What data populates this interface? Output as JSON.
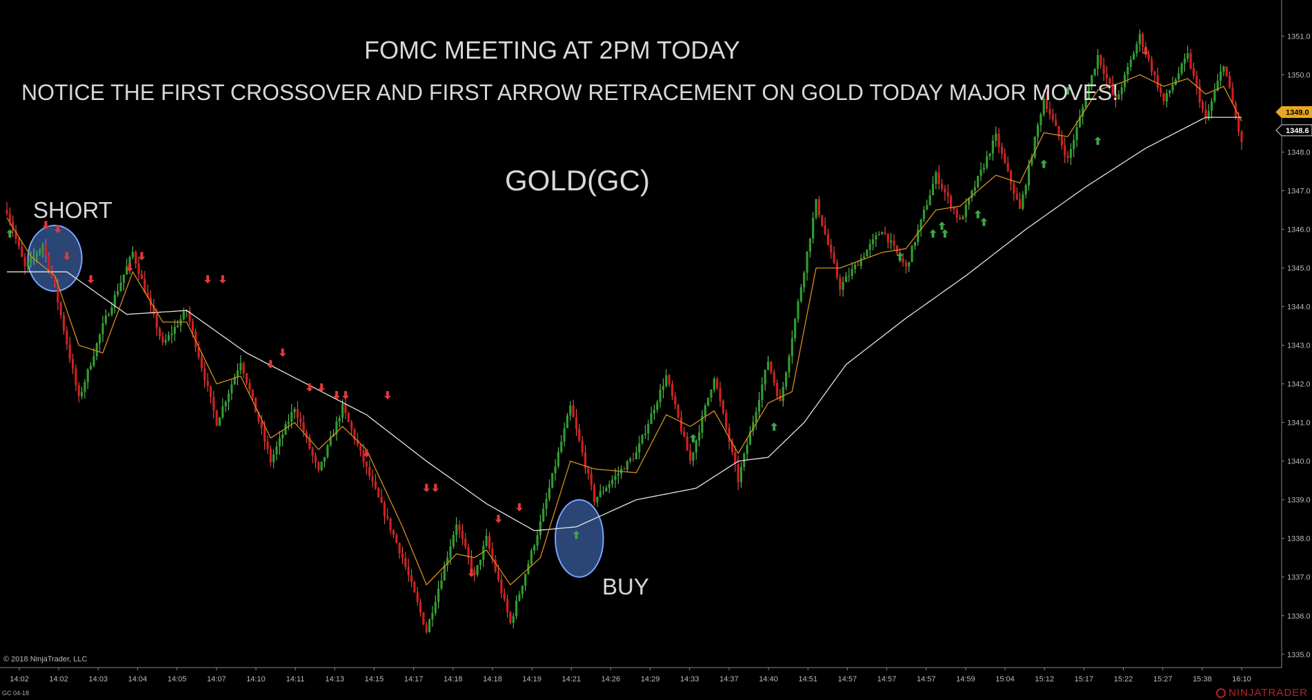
{
  "annotations": {
    "headline": "FOMC MEETING AT 2PM TODAY",
    "subline": "NOTICE THE FIRST CROSSOVER AND FIRST ARROW RETRACEMENT ON GOLD TODAY MAJOR MOVES!",
    "instrument": "GOLD(GC)",
    "short_label": "SHORT",
    "buy_label": "BUY"
  },
  "footer": {
    "copyright": "© 2018 NinjaTrader, LLC",
    "symbol": "GC 04-18",
    "brand": "NINJATRADER"
  },
  "colors": {
    "background": "#000000",
    "up_bar": "#2e9e2e",
    "down_bar": "#d41e1e",
    "fast_ma": "#d7901e",
    "slow_ma": "#e6e6e6",
    "up_arrow": "#3ea64a",
    "down_arrow": "#e0393e",
    "highlight": "#4f7fd6",
    "price_badge": "#e8a820"
  },
  "chart_data": {
    "type": "candlestick",
    "title": "GOLD(GC)",
    "xlabel": "",
    "ylabel": "",
    "ylim": [
      1334.8,
      1351.4
    ],
    "y_ticks": [
      1335.0,
      1336.0,
      1337.0,
      1338.0,
      1339.0,
      1340.0,
      1341.0,
      1342.0,
      1343.0,
      1344.0,
      1345.0,
      1346.0,
      1347.0,
      1348.0,
      1349.0,
      1350.0,
      1351.0
    ],
    "x_tick_labels": [
      "14:02",
      "14:02",
      "14:03",
      "14:04",
      "14:05",
      "14:07",
      "14:10",
      "14:11",
      "14:13",
      "14:15",
      "14:17",
      "14:18",
      "14:18",
      "14:19",
      "14:21",
      "14:26",
      "14:29",
      "14:33",
      "14:37",
      "14:40",
      "14:51",
      "14:57",
      "14:57",
      "14:57",
      "14:59",
      "15:04",
      "15:12",
      "15:17",
      "15:22",
      "15:27",
      "15:38",
      "16:10"
    ],
    "grid": false,
    "price_markers": [
      {
        "label": "1349.0",
        "value": 1349.0
      },
      {
        "label": "1348.6",
        "value": 1348.6
      }
    ],
    "price_path": [
      [
        0,
        1346.5
      ],
      [
        6,
        1345.0
      ],
      [
        12,
        1345.6
      ],
      [
        16,
        1344.5
      ],
      [
        24,
        1341.6
      ],
      [
        32,
        1343.5
      ],
      [
        42,
        1345.4
      ],
      [
        52,
        1343.0
      ],
      [
        60,
        1343.9
      ],
      [
        70,
        1341.0
      ],
      [
        78,
        1342.6
      ],
      [
        88,
        1340.0
      ],
      [
        96,
        1341.4
      ],
      [
        104,
        1339.7
      ],
      [
        112,
        1341.4
      ],
      [
        120,
        1339.8
      ],
      [
        132,
        1337.5
      ],
      [
        140,
        1335.6
      ],
      [
        150,
        1338.4
      ],
      [
        156,
        1337.0
      ],
      [
        160,
        1338.0
      ],
      [
        168,
        1335.8
      ],
      [
        178,
        1338.4
      ],
      [
        188,
        1341.4
      ],
      [
        196,
        1339.0
      ],
      [
        210,
        1340.2
      ],
      [
        220,
        1342.2
      ],
      [
        228,
        1340.0
      ],
      [
        236,
        1342.2
      ],
      [
        244,
        1339.5
      ],
      [
        254,
        1342.6
      ],
      [
        258,
        1341.5
      ],
      [
        270,
        1346.7
      ],
      [
        278,
        1344.5
      ],
      [
        292,
        1346.0
      ],
      [
        300,
        1345.0
      ],
      [
        310,
        1347.4
      ],
      [
        318,
        1346.2
      ],
      [
        330,
        1348.4
      ],
      [
        338,
        1346.5
      ],
      [
        346,
        1349.4
      ],
      [
        354,
        1347.8
      ],
      [
        364,
        1350.5
      ],
      [
        370,
        1349.3
      ],
      [
        378,
        1351.0
      ],
      [
        386,
        1349.3
      ],
      [
        394,
        1350.5
      ],
      [
        400,
        1348.8
      ],
      [
        406,
        1350.3
      ],
      [
        412,
        1348.2
      ]
    ],
    "slow_ma_path": [
      [
        0,
        1344.9
      ],
      [
        20,
        1344.9
      ],
      [
        40,
        1343.8
      ],
      [
        60,
        1343.9
      ],
      [
        80,
        1342.8
      ],
      [
        100,
        1342.0
      ],
      [
        120,
        1341.2
      ],
      [
        140,
        1340.0
      ],
      [
        160,
        1338.9
      ],
      [
        176,
        1338.2
      ],
      [
        190,
        1338.3
      ],
      [
        210,
        1339.0
      ],
      [
        230,
        1339.3
      ],
      [
        244,
        1340.0
      ],
      [
        254,
        1340.1
      ],
      [
        266,
        1341.0
      ],
      [
        280,
        1342.5
      ],
      [
        300,
        1343.7
      ],
      [
        320,
        1344.8
      ],
      [
        340,
        1346.0
      ],
      [
        360,
        1347.1
      ],
      [
        380,
        1348.1
      ],
      [
        400,
        1348.9
      ],
      [
        412,
        1348.9
      ]
    ],
    "fast_ma_path": [
      [
        0,
        1346.3
      ],
      [
        8,
        1345.3
      ],
      [
        16,
        1344.8
      ],
      [
        24,
        1343.0
      ],
      [
        32,
        1342.8
      ],
      [
        42,
        1344.9
      ],
      [
        52,
        1343.6
      ],
      [
        60,
        1343.6
      ],
      [
        70,
        1342.0
      ],
      [
        78,
        1342.2
      ],
      [
        88,
        1340.6
      ],
      [
        96,
        1341.0
      ],
      [
        104,
        1340.3
      ],
      [
        112,
        1340.9
      ],
      [
        120,
        1340.3
      ],
      [
        132,
        1338.3
      ],
      [
        140,
        1336.8
      ],
      [
        150,
        1337.6
      ],
      [
        156,
        1337.5
      ],
      [
        160,
        1337.7
      ],
      [
        168,
        1336.8
      ],
      [
        178,
        1337.5
      ],
      [
        188,
        1340.0
      ],
      [
        196,
        1339.8
      ],
      [
        210,
        1339.7
      ],
      [
        220,
        1341.2
      ],
      [
        228,
        1340.9
      ],
      [
        236,
        1341.3
      ],
      [
        244,
        1340.2
      ],
      [
        254,
        1341.5
      ],
      [
        262,
        1341.8
      ],
      [
        270,
        1345.0
      ],
      [
        278,
        1345.0
      ],
      [
        292,
        1345.4
      ],
      [
        300,
        1345.5
      ],
      [
        310,
        1346.5
      ],
      [
        318,
        1346.6
      ],
      [
        330,
        1347.4
      ],
      [
        338,
        1347.2
      ],
      [
        346,
        1348.5
      ],
      [
        354,
        1348.4
      ],
      [
        364,
        1349.6
      ],
      [
        372,
        1349.8
      ],
      [
        378,
        1350.0
      ],
      [
        386,
        1349.7
      ],
      [
        394,
        1349.9
      ],
      [
        400,
        1349.5
      ],
      [
        406,
        1349.7
      ],
      [
        412,
        1348.8
      ]
    ],
    "signals": [
      {
        "dir": "up",
        "bar": 1,
        "price": 1346.0
      },
      {
        "dir": "down",
        "bar": 13,
        "price": 1346.0
      },
      {
        "dir": "down",
        "bar": 17,
        "price": 1345.9
      },
      {
        "dir": "down",
        "bar": 20,
        "price": 1345.2
      },
      {
        "dir": "down",
        "bar": 28,
        "price": 1344.6
      },
      {
        "dir": "down",
        "bar": 41,
        "price": 1344.9
      },
      {
        "dir": "down",
        "bar": 45,
        "price": 1345.2
      },
      {
        "dir": "down",
        "bar": 67,
        "price": 1344.6
      },
      {
        "dir": "down",
        "bar": 72,
        "price": 1344.6
      },
      {
        "dir": "down",
        "bar": 88,
        "price": 1342.4
      },
      {
        "dir": "down",
        "bar": 92,
        "price": 1342.7
      },
      {
        "dir": "down",
        "bar": 101,
        "price": 1341.8
      },
      {
        "dir": "down",
        "bar": 105,
        "price": 1341.8
      },
      {
        "dir": "down",
        "bar": 110,
        "price": 1341.6
      },
      {
        "dir": "down",
        "bar": 113,
        "price": 1341.6
      },
      {
        "dir": "down",
        "bar": 120,
        "price": 1340.1
      },
      {
        "dir": "down",
        "bar": 127,
        "price": 1341.6
      },
      {
        "dir": "down",
        "bar": 140,
        "price": 1339.2
      },
      {
        "dir": "down",
        "bar": 143,
        "price": 1339.2
      },
      {
        "dir": "down",
        "bar": 155,
        "price": 1337.0
      },
      {
        "dir": "down",
        "bar": 164,
        "price": 1338.4
      },
      {
        "dir": "down",
        "bar": 171,
        "price": 1338.7
      },
      {
        "dir": "up",
        "bar": 190,
        "price": 1338.2
      },
      {
        "dir": "up",
        "bar": 229,
        "price": 1340.7
      },
      {
        "dir": "up",
        "bar": 256,
        "price": 1341.0
      },
      {
        "dir": "up",
        "bar": 298,
        "price": 1345.4
      },
      {
        "dir": "up",
        "bar": 309,
        "price": 1346.0
      },
      {
        "dir": "up",
        "bar": 312,
        "price": 1346.2
      },
      {
        "dir": "up",
        "bar": 313,
        "price": 1346.0
      },
      {
        "dir": "up",
        "bar": 324,
        "price": 1346.5
      },
      {
        "dir": "up",
        "bar": 326,
        "price": 1346.3
      },
      {
        "dir": "up",
        "bar": 346,
        "price": 1347.8
      },
      {
        "dir": "up",
        "bar": 354,
        "price": 1349.7
      },
      {
        "dir": "up",
        "bar": 364,
        "price": 1348.4
      },
      {
        "dir": "down",
        "bar": 380,
        "price": 1350.5
      }
    ],
    "highlights": [
      {
        "label_ref": "short_label",
        "bar": 16,
        "price": 1345.25,
        "bars_half_width": 9,
        "price_half_height": 0.85
      },
      {
        "label_ref": "buy_label",
        "bar": 191,
        "price": 1338.0,
        "bars_half_width": 8,
        "price_half_height": 1.0
      }
    ]
  }
}
